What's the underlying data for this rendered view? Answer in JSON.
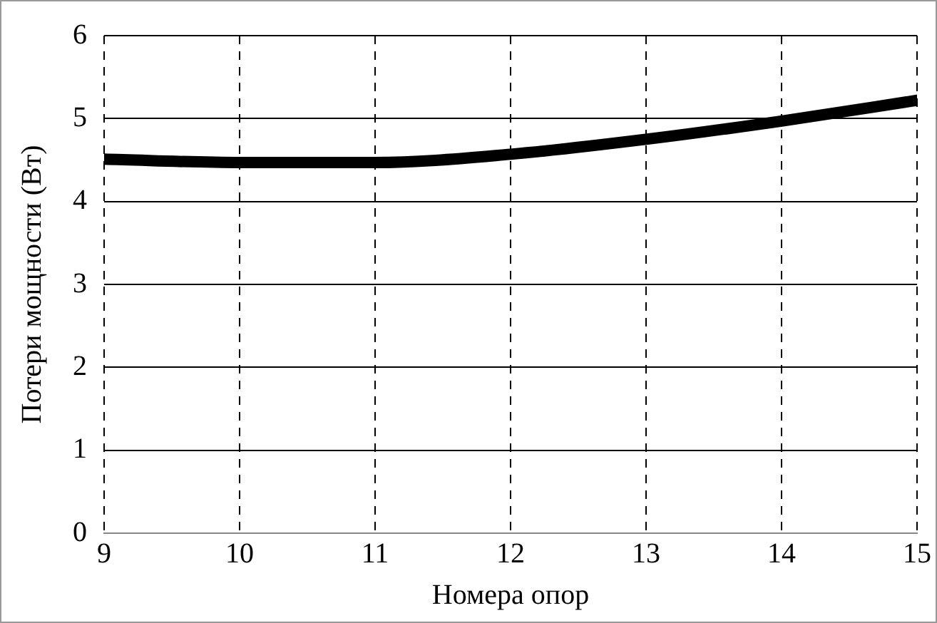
{
  "chart_data": {
    "type": "line",
    "xlabel": "Номера опор",
    "ylabel": "Потери мощности (Вт)",
    "x": [
      9,
      10,
      11,
      12,
      13,
      14,
      15
    ],
    "series": [
      {
        "color": "#000000",
        "values": [
          4.51,
          4.47,
          4.47,
          4.57,
          4.75,
          4.97,
          5.22
        ]
      }
    ],
    "xlim": [
      9,
      15
    ],
    "xticks": [
      9,
      10,
      11,
      12,
      13,
      14,
      15
    ],
    "ylim": [
      0,
      6
    ],
    "yticks": [
      0,
      1,
      2,
      3,
      4,
      5,
      6
    ],
    "grid": true,
    "legend": false,
    "marker": "none",
    "line_style": "solid"
  }
}
